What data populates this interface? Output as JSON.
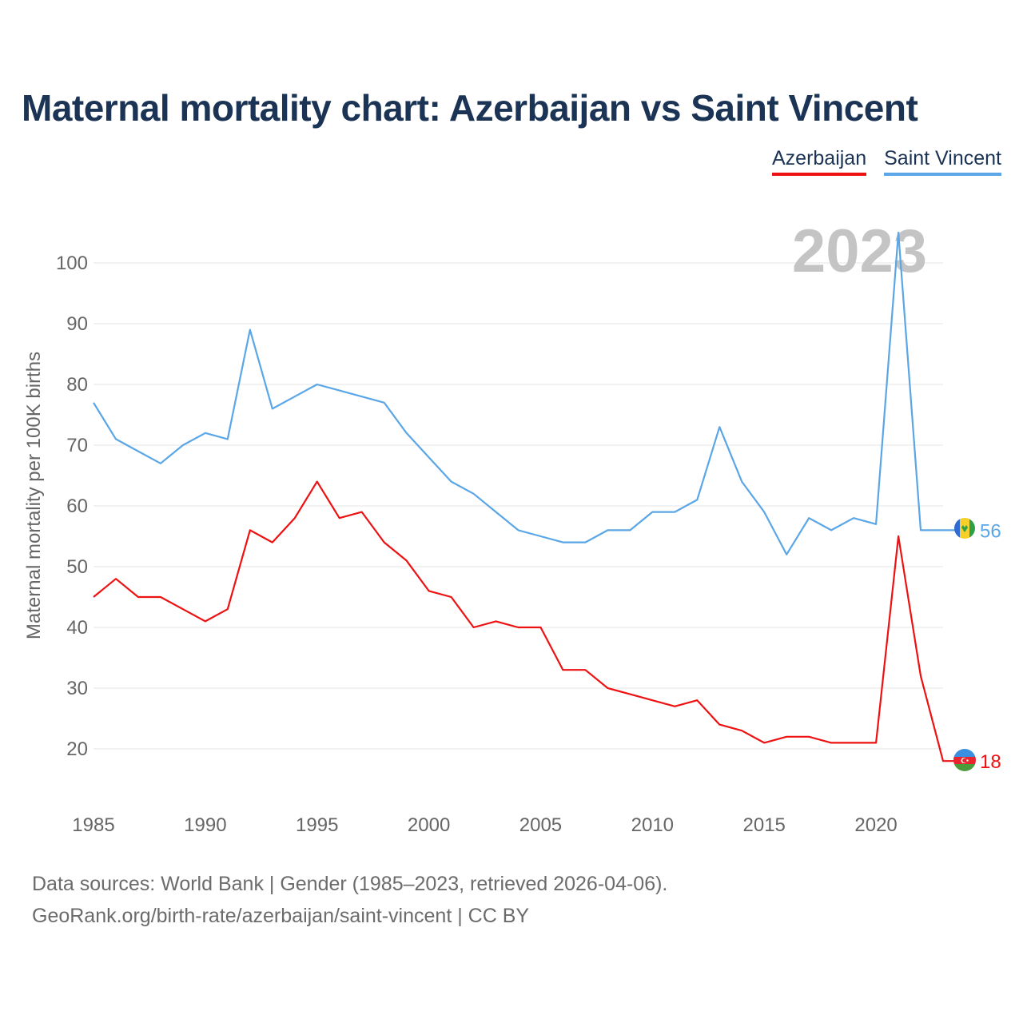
{
  "title": "Maternal mortality chart: Azerbaijan vs Saint Vincent",
  "legend": [
    {
      "name": "Azerbaijan",
      "color": "#ee1111"
    },
    {
      "name": "Saint Vincent",
      "color": "#5aa6e6"
    }
  ],
  "footer": {
    "line1": "Data sources: World Bank | Gender (1985–2023, retrieved 2026-04-06).",
    "line2": "GeoRank.org/birth-rate/azerbaijan/saint-vincent | CC BY"
  },
  "chart_data": {
    "type": "line",
    "title": "Maternal mortality chart: Azerbaijan vs Saint Vincent",
    "watermark_year": "2023",
    "xlabel": "",
    "ylabel": "Maternal mortality per 100K births",
    "xlim": [
      1985,
      2023
    ],
    "ylim": [
      13,
      107
    ],
    "x_ticks": [
      1985,
      1990,
      1995,
      2000,
      2005,
      2010,
      2015,
      2020
    ],
    "y_ticks": [
      20,
      30,
      40,
      50,
      60,
      70,
      80,
      90,
      100
    ],
    "grid": true,
    "x": [
      1985,
      1986,
      1987,
      1988,
      1989,
      1990,
      1991,
      1992,
      1993,
      1994,
      1995,
      1996,
      1997,
      1998,
      1999,
      2000,
      2001,
      2002,
      2003,
      2004,
      2005,
      2006,
      2007,
      2008,
      2009,
      2010,
      2011,
      2012,
      2013,
      2014,
      2015,
      2016,
      2017,
      2018,
      2019,
      2020,
      2021,
      2022,
      2023
    ],
    "series": [
      {
        "name": "Azerbaijan",
        "color": "#ee1111",
        "end_label": "18",
        "values": [
          45,
          48,
          45,
          45,
          43,
          41,
          43,
          56,
          54,
          58,
          64,
          58,
          59,
          54,
          51,
          46,
          45,
          40,
          41,
          40,
          40,
          33,
          33,
          30,
          29,
          28,
          27,
          28,
          24,
          23,
          21,
          22,
          22,
          21,
          21,
          21,
          55,
          32,
          18
        ]
      },
      {
        "name": "Saint Vincent",
        "color": "#5aa6e6",
        "end_label": "56",
        "values": [
          77,
          71,
          69,
          67,
          70,
          72,
          71,
          89,
          76,
          78,
          80,
          79,
          78,
          77,
          72,
          68,
          64,
          62,
          59,
          56,
          55,
          54,
          54,
          56,
          56,
          59,
          59,
          61,
          73,
          64,
          59,
          52,
          58,
          56,
          58,
          57,
          105,
          56,
          56
        ]
      }
    ]
  }
}
